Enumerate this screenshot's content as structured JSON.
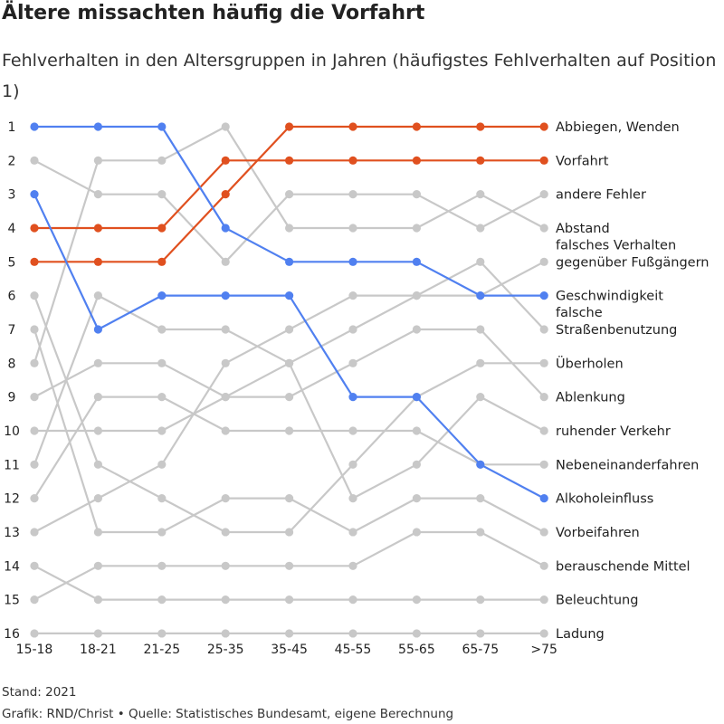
{
  "title": "Ältere missachten häufig die Vorfahrt",
  "subtitle": "Fehlverhalten in den Altersgruppen in Jahren (häufigstes Fehlverhalten auf Position 1)",
  "footer": {
    "note": "Stand: 2021",
    "source": "Grafik: RND/Christ • Quelle: Statistisches Bundesamt, eigene Berechnung"
  },
  "colors": {
    "orange": "#e0501f",
    "blue": "#5080f0",
    "gray": "#c8c8c8"
  },
  "chart_data": {
    "type": "line",
    "chart_subtype": "bump",
    "categories": [
      "15-18",
      "18-21",
      "21-25",
      "25-35",
      "35-45",
      "45-55",
      "55-65",
      "65-75",
      ">75"
    ],
    "y_ticks": [
      "1",
      "2",
      "3",
      "4",
      "5",
      "6",
      "7",
      "8",
      "9",
      "10",
      "11",
      "12",
      "13",
      "14",
      "15",
      "16"
    ],
    "ylim": [
      1,
      16
    ],
    "y_inverted": true,
    "series": [
      {
        "name": "Abbiegen, Wenden",
        "color": "orange",
        "values": [
          5,
          5,
          5,
          3,
          1,
          1,
          1,
          1,
          1
        ],
        "label_lines": [
          "Abbiegen, Wenden"
        ]
      },
      {
        "name": "Vorfahrt",
        "color": "orange",
        "values": [
          4,
          4,
          4,
          2,
          2,
          2,
          2,
          2,
          2
        ],
        "label_lines": [
          "Vorfahrt"
        ]
      },
      {
        "name": "andere Fehler",
        "color": "gray",
        "values": [
          2,
          3,
          3,
          5,
          3,
          3,
          3,
          4,
          3
        ],
        "label_lines": [
          "andere Fehler"
        ]
      },
      {
        "name": "Abstand",
        "color": "gray",
        "values": [
          8,
          2,
          2,
          1,
          4,
          4,
          4,
          3,
          4
        ],
        "label_lines": [
          "Abstand"
        ]
      },
      {
        "name": "falsches Verhalten gegenüber Fußgängern",
        "color": "gray",
        "values": [
          9,
          8,
          8,
          9,
          8,
          7,
          6,
          6,
          5
        ],
        "label_lines": [
          "falsches Verhalten",
          "gegenüber Fußgängern"
        ]
      },
      {
        "name": "Geschwindigkeit",
        "color": "blue",
        "values": [
          1,
          1,
          1,
          4,
          5,
          5,
          5,
          6,
          6
        ],
        "label_lines": [
          "Geschwindigkeit"
        ]
      },
      {
        "name": "falsche Straßenbenutzung",
        "color": "gray",
        "values": [
          13,
          12,
          11,
          8,
          7,
          6,
          6,
          5,
          7
        ],
        "label_lines": [
          "falsche",
          "Straßenbenutzung"
        ]
      },
      {
        "name": "Überholen",
        "color": "gray",
        "values": [
          6,
          11,
          12,
          13,
          13,
          11,
          9,
          8,
          8
        ],
        "label_lines": [
          "Überholen"
        ]
      },
      {
        "name": "Ablenkung",
        "color": "gray",
        "values": [
          10,
          10,
          10,
          9,
          9,
          8,
          7,
          7,
          9
        ],
        "label_lines": [
          "Ablenkung"
        ]
      },
      {
        "name": "ruhender Verkehr",
        "color": "gray",
        "values": [
          11,
          6,
          7,
          7,
          8,
          12,
          11,
          9,
          10
        ],
        "label_lines": [
          "ruhender Verkehr"
        ]
      },
      {
        "name": "Nebeneinanderfahren",
        "color": "gray",
        "values": [
          12,
          9,
          9,
          10,
          10,
          10,
          10,
          11,
          11
        ],
        "label_lines": [
          "Nebeneinanderfahren"
        ]
      },
      {
        "name": "Alkoholeinfluss",
        "color": "blue",
        "values": [
          3,
          7,
          6,
          6,
          6,
          9,
          9,
          11,
          12
        ],
        "label_lines": [
          "Alkoholeinfluss"
        ]
      },
      {
        "name": "Vorbeifahren",
        "color": "gray",
        "values": [
          7,
          13,
          13,
          12,
          12,
          13,
          12,
          12,
          13
        ],
        "label_lines": [
          "Vorbeifahren"
        ]
      },
      {
        "name": "berauschende Mittel",
        "color": "gray",
        "values": [
          15,
          14,
          14,
          14,
          14,
          14,
          13,
          13,
          14
        ],
        "label_lines": [
          "berauschende Mittel"
        ]
      },
      {
        "name": "Beleuchtung",
        "color": "gray",
        "values": [
          14,
          15,
          15,
          15,
          15,
          15,
          15,
          15,
          15
        ],
        "label_lines": [
          "Beleuchtung"
        ]
      },
      {
        "name": "Ladung",
        "color": "gray",
        "values": [
          16,
          16,
          16,
          16,
          16,
          16,
          16,
          16,
          16
        ],
        "label_lines": [
          "Ladung"
        ]
      }
    ]
  }
}
